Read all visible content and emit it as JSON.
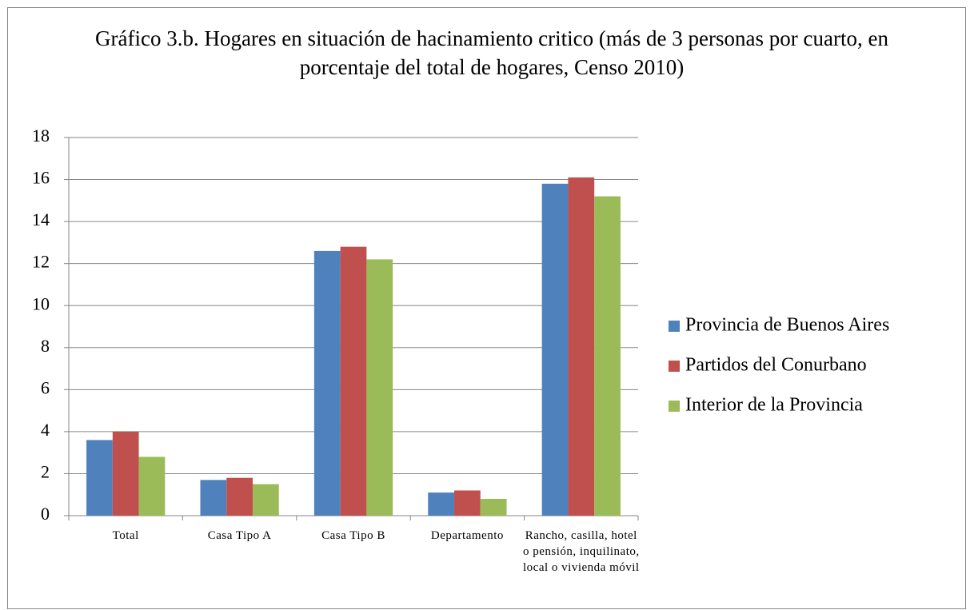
{
  "chart_data": {
    "type": "bar",
    "title": "Gráfico 3.b. Hogares en situación de hacinamiento critico (más de 3 personas por cuarto, en porcentaje del total de hogares, Censo 2010)",
    "categories": [
      "Total",
      "Casa Tipo A",
      "Casa Tipo B",
      "Departamento",
      "Rancho, casilla, hotel o pensión, inquilinato, local o vivienda móvil"
    ],
    "series": [
      {
        "name": "Provincia de Buenos Aires",
        "color": "#4f81bd",
        "values": [
          3.6,
          1.7,
          12.6,
          1.1,
          15.8
        ]
      },
      {
        "name": "Partidos del Conurbano",
        "color": "#c0504d",
        "values": [
          4.0,
          1.8,
          12.8,
          1.2,
          16.1
        ]
      },
      {
        "name": "Interior de la Provincia",
        "color": "#9bbb59",
        "values": [
          2.8,
          1.5,
          12.2,
          0.8,
          15.2
        ]
      }
    ],
    "ylim": [
      0,
      18
    ],
    "yticks": [
      0,
      2,
      4,
      6,
      8,
      10,
      12,
      14,
      16,
      18
    ],
    "grid": true,
    "legend": "right"
  }
}
